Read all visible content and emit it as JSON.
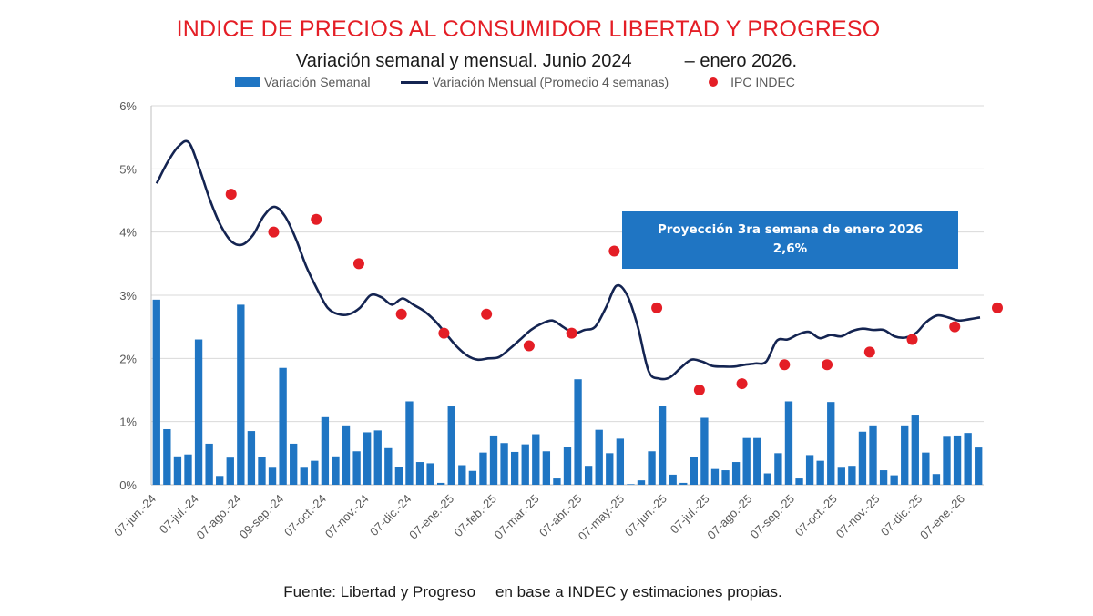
{
  "chart_data": {
    "type": "bar+line+scatter",
    "title": "INDICE DE PRECIOS AL CONSUMIDOR LIBERTAD Y PROGRESO",
    "subtitle_left": "Variación semanal y mensual. Junio 2024",
    "subtitle_right": "– enero  2026.",
    "ylim": [
      0,
      6
    ],
    "y_ticks": [
      "0%",
      "1%",
      "2%",
      "3%",
      "4%",
      "5%",
      "6%"
    ],
    "grid": true,
    "legend_position": "top",
    "x_tick_labels": [
      "07-jun.-24",
      "07-jul.-24",
      "07-ago.-24",
      "09-sep.-24",
      "07-oct.-24",
      "07-nov.-24",
      "07-dic.-24",
      "07-ene.-25",
      "07-feb.-25",
      "07-mar.-25",
      "07-abr.-25",
      "07-may.-25",
      "07-jun.-25",
      "07-jul.-25",
      "07-ago.-25",
      "07-sep.-25",
      "07-oct.-25",
      "07-nov.-25",
      "07-dic.-25",
      "07-ene.-26"
    ],
    "series": [
      {
        "name": "Variación Semanal",
        "kind": "bar",
        "color": "#1f75c3",
        "values": [
          2.93,
          0.88,
          0.45,
          0.48,
          2.3,
          0.65,
          0.14,
          0.43,
          2.85,
          0.85,
          0.44,
          0.27,
          1.85,
          0.65,
          0.27,
          0.38,
          1.07,
          0.45,
          0.94,
          0.53,
          0.83,
          0.86,
          0.58,
          0.28,
          1.32,
          0.36,
          0.34,
          0.03,
          1.24,
          0.31,
          0.22,
          0.51,
          0.78,
          0.66,
          0.52,
          0.64,
          0.8,
          0.53,
          0.1,
          0.6,
          1.67,
          0.3,
          0.87,
          0.5,
          0.73,
          0.01,
          0.07,
          0.53,
          1.25,
          0.16,
          0.03,
          0.44,
          1.06,
          0.25,
          0.23,
          0.36,
          0.74,
          0.74,
          0.18,
          0.5,
          1.32,
          0.1,
          0.47,
          0.38,
          1.31,
          0.27,
          0.3,
          0.84,
          0.94,
          0.23,
          0.15,
          0.94,
          1.11,
          0.51,
          0.17,
          0.76,
          0.78,
          0.82,
          0.59
        ]
      },
      {
        "name": "Variación Mensual (Promedio 4 semanas)",
        "kind": "line",
        "color": "#142451",
        "values": [
          4.77,
          5.1,
          5.35,
          5.42,
          5.0,
          4.5,
          4.1,
          3.85,
          3.8,
          3.95,
          4.25,
          4.4,
          4.25,
          3.9,
          3.45,
          3.1,
          2.8,
          2.7,
          2.7,
          2.8,
          3.0,
          2.97,
          2.85,
          2.95,
          2.85,
          2.75,
          2.6,
          2.4,
          2.2,
          2.05,
          1.98,
          2.0,
          2.02,
          2.15,
          2.3,
          2.45,
          2.55,
          2.6,
          2.5,
          2.4,
          2.45,
          2.5,
          2.8,
          3.15,
          3.0,
          2.5,
          1.8,
          1.68,
          1.7,
          1.85,
          1.98,
          1.95,
          1.88,
          1.87,
          1.87,
          1.9,
          1.92,
          1.95,
          2.28,
          2.3,
          2.38,
          2.42,
          2.32,
          2.37,
          2.35,
          2.43,
          2.47,
          2.45,
          2.45,
          2.35,
          2.33,
          2.4,
          2.58,
          2.68,
          2.65,
          2.6,
          2.62,
          2.65
        ]
      },
      {
        "name": "IPC INDEC",
        "kind": "scatter",
        "color": "#e41e26",
        "points": [
          {
            "x": "07-jul.-24",
            "y": 4.6
          },
          {
            "x": "07-ago.-24",
            "y": 4.0
          },
          {
            "x": "09-sep.-24",
            "y": 4.2
          },
          {
            "x": "07-oct.-24",
            "y": 3.5
          },
          {
            "x": "07-nov.-24",
            "y": 2.7
          },
          {
            "x": "07-dic.-24",
            "y": 2.4
          },
          {
            "x": "07-ene.-25",
            "y": 2.7
          },
          {
            "x": "07-feb.-25",
            "y": 2.2
          },
          {
            "x": "07-mar.-25",
            "y": 2.4
          },
          {
            "x": "07-abr.-25",
            "y": 3.7
          },
          {
            "x": "07-may.-25",
            "y": 2.8
          },
          {
            "x": "07-jun.-25",
            "y": 1.5
          },
          {
            "x": "07-jul.-25",
            "y": 1.6
          },
          {
            "x": "07-ago.-25",
            "y": 1.9
          },
          {
            "x": "07-sep.-25",
            "y": 1.9
          },
          {
            "x": "07-oct.-25",
            "y": 2.1
          },
          {
            "x": "07-nov.-25",
            "y": 2.3
          },
          {
            "x": "07-dic.-25",
            "y": 2.5
          },
          {
            "x": "07-ene.-26",
            "y": 2.8
          }
        ]
      }
    ],
    "annotation": {
      "line1": "Proyección 3ra semana de enero 2026",
      "line2": "2,6%"
    },
    "source": {
      "part1": "Fuente:   Libertad y Progreso",
      "part2": "en base a INDEC y estimaciones propias."
    }
  }
}
